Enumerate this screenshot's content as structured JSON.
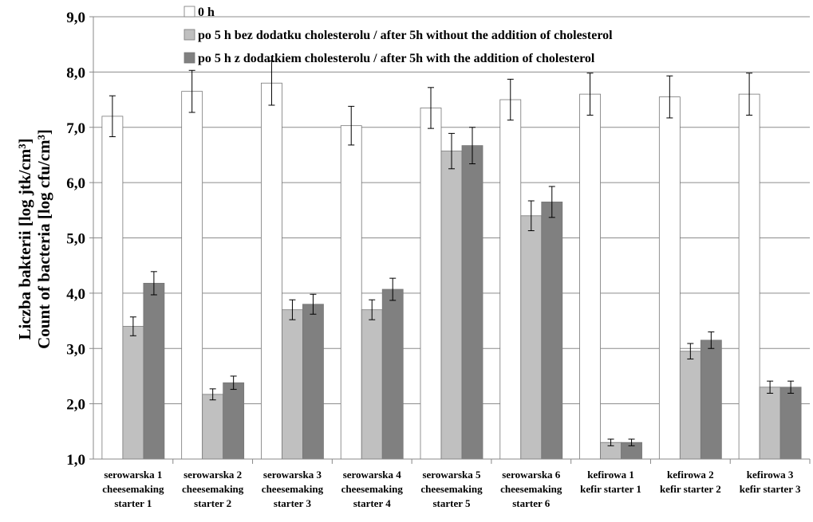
{
  "chart_data": {
    "type": "bar",
    "ylabel_lines": [
      "Liczba bakterii [log jtk/cm³]",
      "Count of bacteria [log cfu/cm³]"
    ],
    "ylim": [
      1.0,
      9.0
    ],
    "yticks": [
      "1,0",
      "2,0",
      "3,0",
      "4,0",
      "5,0",
      "6,0",
      "7,0",
      "8,0",
      "9,0"
    ],
    "grid": true,
    "legend_position": "top",
    "categories": [
      [
        "serowarska 1",
        "cheesemaking",
        "starter 1"
      ],
      [
        "serowarska 2",
        "cheesemaking",
        "starter 2"
      ],
      [
        "serowarska 3",
        "cheesemaking",
        "starter 3"
      ],
      [
        "serowarska 4",
        "cheesemaking",
        "starter 4"
      ],
      [
        "serowarska 5",
        "cheesemaking",
        "starter 5"
      ],
      [
        "serowarska 6",
        "cheesemaking",
        "starter 6"
      ],
      [
        "kefirowa 1",
        "kefir starter 1"
      ],
      [
        "kefirowa 2",
        "kefir starter 2"
      ],
      [
        "kefirowa 3",
        "kefir starter 3"
      ]
    ],
    "series": [
      {
        "name": "0 h",
        "color": "#ffffff",
        "values": [
          7.2,
          7.65,
          7.8,
          7.03,
          7.35,
          7.5,
          7.6,
          7.55,
          7.6
        ],
        "errors": [
          0.37,
          0.38,
          0.4,
          0.35,
          0.37,
          0.37,
          0.38,
          0.38,
          0.38
        ]
      },
      {
        "name": "po 5 h bez dodatku cholesterolu / after 5h without the addition of cholesterol",
        "color": "#c0c0c0",
        "values": [
          3.4,
          2.17,
          3.7,
          3.7,
          6.57,
          5.4,
          1.3,
          2.95,
          2.3
        ],
        "errors": [
          0.17,
          0.1,
          0.18,
          0.18,
          0.32,
          0.27,
          0.06,
          0.14,
          0.11
        ]
      },
      {
        "name": "po 5 h z dodatkiem cholesterolu / after 5h with the addition of cholesterol",
        "color": "#808080",
        "values": [
          4.18,
          2.38,
          3.8,
          4.07,
          6.67,
          5.65,
          1.3,
          3.15,
          2.3
        ],
        "errors": [
          0.21,
          0.12,
          0.18,
          0.2,
          0.33,
          0.28,
          0.06,
          0.15,
          0.11
        ]
      }
    ]
  }
}
